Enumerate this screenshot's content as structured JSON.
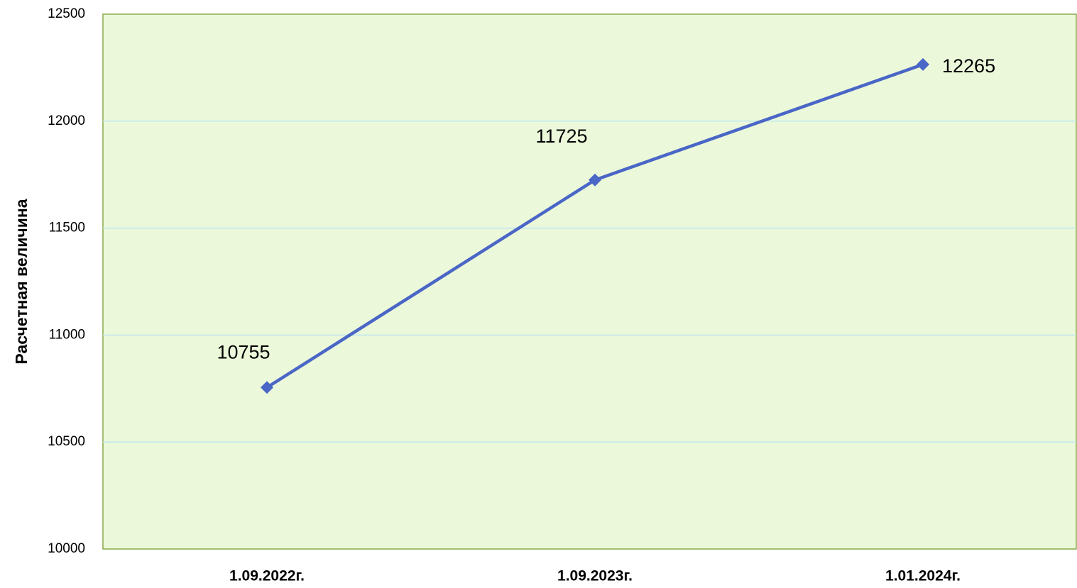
{
  "chart_data": {
    "type": "line",
    "y_label": "Расчетная величина",
    "categories": [
      "1.09.2022г.",
      "1.09.2023г.",
      "1.01.2024г."
    ],
    "series": [
      {
        "name": "Расчетная величина",
        "color": "#4a66c6",
        "values": [
          10755,
          11725,
          12265
        ]
      }
    ],
    "ylim": [
      10000,
      12500
    ],
    "yticks": [
      10000,
      10500,
      11000,
      11500,
      12000,
      12500
    ],
    "grid": true
  }
}
